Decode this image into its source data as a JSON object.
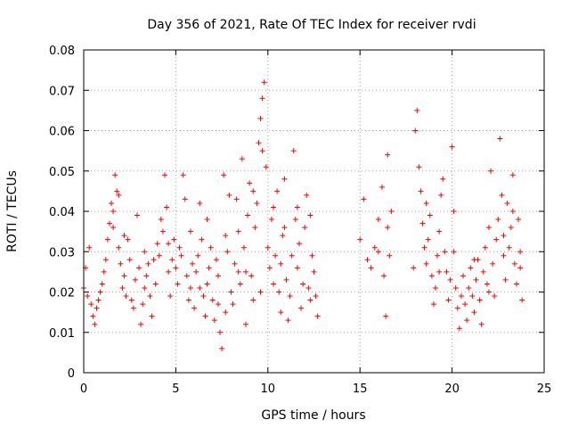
{
  "chart_data": {
    "type": "scatter",
    "title": "Day 356 of 2021, Rate Of TEC Index for receiver rvdi",
    "xlabel": "GPS time / hours",
    "ylabel": "ROTI / TECUs",
    "xlim": [
      0,
      25
    ],
    "ylim": [
      0,
      0.08
    ],
    "x_ticks": [
      "0",
      "5",
      "10",
      "15",
      "20",
      "25"
    ],
    "y_ticks": [
      "0",
      "0.01",
      "0.02",
      "0.03",
      "0.04",
      "0.05",
      "0.06",
      "0.07",
      "0.08"
    ],
    "grid": true,
    "legend": "none",
    "marker": "plus",
    "color": "#ff0000",
    "series": [
      {
        "points": [
          [
            0.0,
            0.021
          ],
          [
            0.1,
            0.026
          ],
          [
            0.2,
            0.019
          ],
          [
            0.3,
            0.031
          ],
          [
            0.4,
            0.017
          ],
          [
            0.5,
            0.014
          ],
          [
            0.6,
            0.012
          ],
          [
            0.7,
            0.016
          ],
          [
            0.8,
            0.018
          ],
          [
            0.9,
            0.02
          ],
          [
            1.0,
            0.022
          ],
          [
            1.1,
            0.025
          ],
          [
            1.2,
            0.028
          ],
          [
            1.3,
            0.033
          ],
          [
            1.4,
            0.037
          ],
          [
            1.5,
            0.042
          ],
          [
            1.6,
            0.036
          ],
          [
            1.7,
            0.049
          ],
          [
            1.8,
            0.045
          ],
          [
            1.9,
            0.031
          ],
          [
            2.0,
            0.027
          ],
          [
            2.1,
            0.021
          ],
          [
            2.2,
            0.024
          ],
          [
            2.3,
            0.019
          ],
          [
            2.4,
            0.033
          ],
          [
            2.5,
            0.028
          ],
          [
            2.6,
            0.018
          ],
          [
            2.7,
            0.016
          ],
          [
            2.8,
            0.023
          ],
          [
            2.9,
            0.039
          ],
          [
            3.0,
            0.026
          ],
          [
            3.1,
            0.012
          ],
          [
            3.2,
            0.017
          ],
          [
            3.3,
            0.021
          ],
          [
            3.4,
            0.024
          ],
          [
            3.5,
            0.027
          ],
          [
            3.6,
            0.019
          ],
          [
            3.7,
            0.014
          ],
          [
            3.8,
            0.028
          ],
          [
            3.9,
            0.022
          ],
          [
            4.0,
            0.032
          ],
          [
            4.1,
            0.029
          ],
          [
            4.2,
            0.038
          ],
          [
            4.3,
            0.035
          ],
          [
            4.4,
            0.049
          ],
          [
            4.5,
            0.041
          ],
          [
            4.6,
            0.025
          ],
          [
            4.7,
            0.019
          ],
          [
            4.8,
            0.028
          ],
          [
            4.9,
            0.033
          ],
          [
            5.0,
            0.026
          ],
          [
            5.1,
            0.022
          ],
          [
            5.2,
            0.031
          ],
          [
            5.3,
            0.029
          ],
          [
            5.4,
            0.049
          ],
          [
            5.5,
            0.043
          ],
          [
            5.6,
            0.024
          ],
          [
            5.7,
            0.018
          ],
          [
            5.8,
            0.021
          ],
          [
            5.9,
            0.027
          ],
          [
            6.0,
            0.016
          ],
          [
            6.1,
            0.025
          ],
          [
            6.2,
            0.029
          ],
          [
            6.3,
            0.042
          ],
          [
            6.4,
            0.033
          ],
          [
            6.5,
            0.019
          ],
          [
            6.6,
            0.014
          ],
          [
            6.7,
            0.022
          ],
          [
            6.8,
            0.026
          ],
          [
            6.9,
            0.031
          ],
          [
            7.0,
            0.018
          ],
          [
            7.1,
            0.013
          ],
          [
            7.2,
            0.028
          ],
          [
            7.3,
            0.024
          ],
          [
            7.4,
            0.01
          ],
          [
            7.5,
            0.006
          ],
          [
            7.6,
            0.049
          ],
          [
            7.7,
            0.015
          ],
          [
            7.8,
            0.03
          ],
          [
            7.9,
            0.044
          ],
          [
            8.0,
            0.02
          ],
          [
            8.1,
            0.017
          ],
          [
            8.2,
            0.027
          ],
          [
            8.3,
            0.043
          ],
          [
            8.4,
            0.035
          ],
          [
            8.5,
            0.022
          ],
          [
            8.6,
            0.053
          ],
          [
            8.7,
            0.031
          ],
          [
            8.8,
            0.025
          ],
          [
            8.9,
            0.039
          ],
          [
            9.0,
            0.047
          ],
          [
            9.1,
            0.024
          ],
          [
            9.2,
            0.018
          ],
          [
            9.3,
            0.036
          ],
          [
            9.4,
            0.042
          ],
          [
            9.5,
            0.057
          ],
          [
            9.6,
            0.063
          ],
          [
            9.7,
            0.068
          ],
          [
            9.8,
            0.072
          ],
          [
            9.9,
            0.051
          ],
          [
            10.0,
            0.031
          ],
          [
            10.1,
            0.026
          ],
          [
            10.2,
            0.038
          ],
          [
            10.3,
            0.022
          ],
          [
            10.4,
            0.029
          ],
          [
            10.5,
            0.045
          ],
          [
            10.6,
            0.02
          ],
          [
            10.7,
            0.027
          ],
          [
            10.8,
            0.034
          ],
          [
            10.9,
            0.048
          ],
          [
            11.0,
            0.023
          ],
          [
            11.1,
            0.013
          ],
          [
            11.2,
            0.019
          ],
          [
            11.3,
            0.029
          ],
          [
            11.4,
            0.055
          ],
          [
            11.5,
            0.038
          ],
          [
            11.6,
            0.026
          ],
          [
            11.7,
            0.032
          ],
          [
            11.8,
            0.016
          ],
          [
            11.9,
            0.022
          ],
          [
            12.0,
            0.036
          ],
          [
            12.1,
            0.044
          ],
          [
            12.2,
            0.021
          ],
          [
            12.3,
            0.018
          ],
          [
            12.4,
            0.029
          ],
          [
            12.5,
            0.025
          ],
          [
            12.6,
            0.019
          ],
          [
            12.7,
            0.014
          ],
          [
            15.0,
            0.033
          ],
          [
            15.2,
            0.043
          ],
          [
            15.4,
            0.028
          ],
          [
            15.6,
            0.026
          ],
          [
            15.8,
            0.031
          ],
          [
            16.0,
            0.038
          ],
          [
            16.2,
            0.046
          ],
          [
            16.3,
            0.024
          ],
          [
            16.4,
            0.014
          ],
          [
            16.5,
            0.054
          ],
          [
            16.6,
            0.029
          ],
          [
            16.7,
            0.04
          ],
          [
            17.9,
            0.026
          ],
          [
            18.0,
            0.06
          ],
          [
            18.1,
            0.065
          ],
          [
            18.2,
            0.051
          ],
          [
            18.3,
            0.045
          ],
          [
            18.4,
            0.037
          ],
          [
            18.5,
            0.031
          ],
          [
            18.6,
            0.027
          ],
          [
            18.7,
            0.033
          ],
          [
            18.8,
            0.039
          ],
          [
            18.9,
            0.024
          ],
          [
            19.0,
            0.017
          ],
          [
            19.1,
            0.021
          ],
          [
            19.2,
            0.029
          ],
          [
            19.3,
            0.035
          ],
          [
            19.4,
            0.044
          ],
          [
            19.5,
            0.048
          ],
          [
            19.6,
            0.03
          ],
          [
            19.7,
            0.025
          ],
          [
            19.8,
            0.018
          ],
          [
            19.9,
            0.023
          ],
          [
            20.0,
            0.056
          ],
          [
            20.1,
            0.04
          ],
          [
            20.2,
            0.021
          ],
          [
            20.3,
            0.016
          ],
          [
            20.4,
            0.011
          ],
          [
            20.5,
            0.019
          ],
          [
            20.6,
            0.024
          ],
          [
            20.7,
            0.017
          ],
          [
            20.8,
            0.013
          ],
          [
            20.9,
            0.021
          ],
          [
            21.0,
            0.026
          ],
          [
            21.1,
            0.019
          ],
          [
            21.2,
            0.015
          ],
          [
            21.3,
            0.023
          ],
          [
            21.4,
            0.028
          ],
          [
            21.5,
            0.018
          ],
          [
            21.6,
            0.012
          ],
          [
            21.7,
            0.025
          ],
          [
            21.8,
            0.031
          ],
          [
            21.9,
            0.022
          ],
          [
            22.0,
            0.036
          ],
          [
            22.1,
            0.05
          ],
          [
            22.2,
            0.027
          ],
          [
            22.3,
            0.019
          ],
          [
            22.4,
            0.033
          ],
          [
            22.5,
            0.038
          ],
          [
            22.6,
            0.058
          ],
          [
            22.7,
            0.044
          ],
          [
            22.8,
            0.029
          ],
          [
            22.9,
            0.023
          ],
          [
            23.0,
            0.042
          ],
          [
            23.1,
            0.031
          ],
          [
            23.2,
            0.036
          ],
          [
            23.3,
            0.049
          ],
          [
            23.4,
            0.027
          ],
          [
            23.5,
            0.022
          ],
          [
            23.6,
            0.038
          ],
          [
            23.7,
            0.03
          ],
          [
            23.8,
            0.018
          ],
          [
            1.6,
            0.04
          ],
          [
            1.9,
            0.044
          ],
          [
            2.2,
            0.034
          ],
          [
            3.3,
            0.03
          ],
          [
            4.6,
            0.032
          ],
          [
            5.8,
            0.035
          ],
          [
            6.7,
            0.038
          ],
          [
            7.7,
            0.034
          ],
          [
            8.4,
            0.025
          ],
          [
            9.2,
            0.045
          ],
          [
            9.7,
            0.055
          ],
          [
            10.3,
            0.041
          ],
          [
            10.9,
            0.036
          ],
          [
            11.6,
            0.041
          ],
          [
            12.3,
            0.039
          ],
          [
            16.0,
            0.03
          ],
          [
            16.5,
            0.036
          ],
          [
            18.6,
            0.042
          ],
          [
            19.3,
            0.025
          ],
          [
            20.1,
            0.03
          ],
          [
            21.2,
            0.028
          ],
          [
            22.0,
            0.02
          ],
          [
            22.8,
            0.034
          ],
          [
            23.3,
            0.04
          ],
          [
            23.7,
            0.026
          ],
          [
            6.3,
            0.021
          ],
          [
            7.3,
            0.017
          ],
          [
            8.8,
            0.012
          ],
          [
            9.6,
            0.02
          ],
          [
            10.7,
            0.015
          ]
        ]
      }
    ]
  }
}
